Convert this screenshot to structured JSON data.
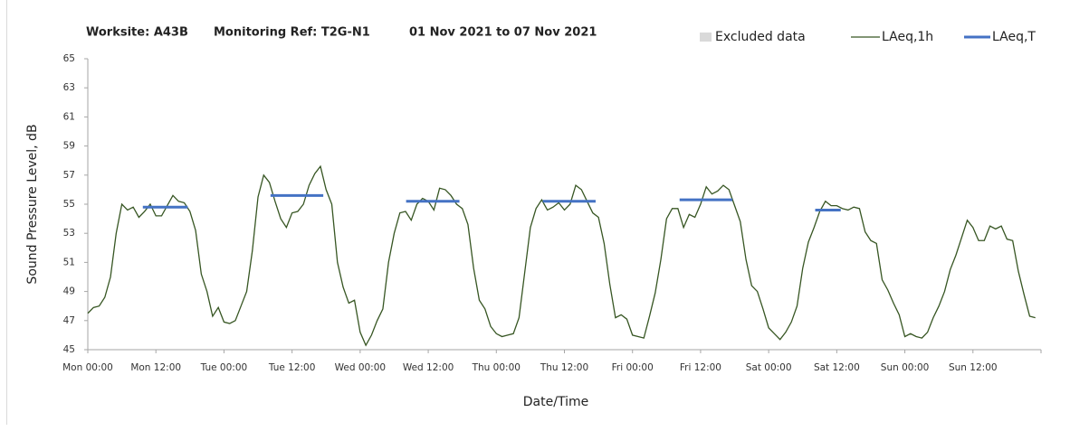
{
  "chart_data": {
    "type": "line",
    "title": [
      "Worksite: A43B",
      "Monitoring Ref: T2G-N1",
      "01 Nov 2021 to 07 Nov 2021"
    ],
    "xlabel": "Date/Time",
    "ylabel": "Sound Pressure Level, dB",
    "xlim": [
      0,
      168
    ],
    "ylim": [
      45,
      65
    ],
    "yticks": [
      45,
      47,
      49,
      51,
      53,
      55,
      57,
      59,
      61,
      63,
      65
    ],
    "xticks": [
      {
        "value": 0,
        "label": "Mon 00:00"
      },
      {
        "value": 12,
        "label": "Mon 12:00"
      },
      {
        "value": 24,
        "label": "Tue 00:00"
      },
      {
        "value": 36,
        "label": "Tue 12:00"
      },
      {
        "value": 48,
        "label": "Wed 00:00"
      },
      {
        "value": 60,
        "label": "Wed 12:00"
      },
      {
        "value": 72,
        "label": "Thu 00:00"
      },
      {
        "value": 84,
        "label": "Thu 12:00"
      },
      {
        "value": 96,
        "label": "Fri 00:00"
      },
      {
        "value": 108,
        "label": "Fri 12:00"
      },
      {
        "value": 120,
        "label": "Sat 00:00"
      },
      {
        "value": 132,
        "label": "Sat 12:00"
      },
      {
        "value": 144,
        "label": "Sun 00:00"
      },
      {
        "value": 156,
        "label": "Sun 12:00"
      }
    ],
    "excluded": {
      "name": "Excluded data",
      "color": "#d9d9d9"
    },
    "series": [
      {
        "name": "LAeq,1h",
        "color": "#375623",
        "x": [
          0,
          1,
          2,
          3,
          4,
          5,
          6,
          7,
          8,
          9,
          10,
          11,
          12,
          13,
          14,
          15,
          16,
          17,
          18,
          19,
          20,
          21,
          22,
          23,
          24,
          25,
          26,
          27,
          28,
          29,
          30,
          31,
          32,
          33,
          34,
          35,
          36,
          37,
          38,
          39,
          40,
          41,
          42,
          43,
          44,
          45,
          46,
          47,
          48,
          49,
          50,
          51,
          52,
          53,
          54,
          55,
          56,
          57,
          58,
          59,
          60,
          61,
          62,
          63,
          64,
          65,
          66,
          67,
          68,
          69,
          70,
          71,
          72,
          73,
          74,
          75,
          76,
          77,
          78,
          79,
          80,
          81,
          82,
          83,
          84,
          85,
          86,
          87,
          88,
          89,
          90,
          91,
          92,
          93,
          94,
          95,
          96,
          97,
          98,
          99,
          100,
          101,
          102,
          103,
          104,
          105,
          106,
          107,
          108,
          109,
          110,
          111,
          112,
          113,
          114,
          115,
          116,
          117,
          118,
          119,
          120,
          121,
          122,
          123,
          124,
          125,
          126,
          127,
          128,
          129,
          130,
          131,
          132,
          133,
          134,
          135,
          136,
          137,
          138,
          139,
          140,
          141,
          142,
          143,
          144,
          145,
          146,
          147,
          148,
          149,
          150,
          151,
          152,
          153,
          154,
          155,
          156,
          157,
          158,
          159,
          160,
          161,
          162,
          163,
          164,
          165,
          166,
          167
        ],
        "values": [
          47.5,
          47.9,
          48.0,
          48.6,
          50.0,
          53.0,
          55.0,
          54.6,
          54.8,
          54.1,
          54.5,
          55.0,
          54.2,
          54.2,
          54.9,
          55.6,
          55.2,
          55.1,
          54.5,
          53.2,
          50.2,
          49.0,
          47.3,
          47.9,
          46.9,
          46.8,
          47.0,
          48.0,
          49.0,
          51.8,
          55.5,
          57.0,
          56.5,
          55.2,
          54.0,
          53.4,
          54.4,
          54.5,
          55.0,
          56.3,
          57.1,
          57.6,
          56.0,
          55.0,
          51.0,
          49.3,
          48.2,
          48.4,
          46.2,
          45.3,
          46.0,
          47.0,
          47.8,
          51.0,
          53.0,
          54.4,
          54.5,
          53.9,
          55.0,
          55.4,
          55.2,
          54.6,
          56.1,
          56.0,
          55.6,
          55.0,
          54.7,
          53.6,
          50.6,
          48.4,
          47.8,
          46.6,
          46.1,
          45.9,
          46.0,
          46.1,
          47.2,
          50.3,
          53.4,
          54.7,
          55.3,
          54.6,
          54.8,
          55.1,
          54.6,
          55.0,
          56.3,
          56.0,
          55.2,
          54.4,
          54.1,
          52.3,
          49.5,
          47.2,
          47.4,
          47.1,
          46.0,
          45.9,
          45.8,
          47.3,
          48.9,
          51.2,
          54.0,
          54.7,
          54.7,
          53.4,
          54.3,
          54.1,
          55.0,
          56.2,
          55.7,
          55.9,
          56.3,
          56.0,
          54.9,
          53.8,
          51.2,
          49.4,
          49.0,
          47.8,
          46.5,
          46.1,
          45.7,
          46.2,
          46.9,
          48.0,
          50.6,
          52.4,
          53.4,
          54.5,
          55.2,
          54.9,
          54.9,
          54.7,
          54.6,
          54.8,
          54.7,
          53.1,
          52.5,
          52.3,
          49.8,
          49.1,
          48.2,
          47.4,
          45.9,
          46.1,
          45.9,
          45.8,
          46.2,
          47.2,
          48.0,
          49.0,
          50.5,
          51.5,
          52.7,
          53.9,
          53.4,
          52.5,
          52.5,
          53.5,
          53.3,
          53.5,
          52.6,
          52.5,
          50.4,
          48.8,
          47.3,
          47.2
        ]
      },
      {
        "name": "LAeq,T",
        "color": "#4472c4",
        "x": [
          [
            9.7,
            17.6
          ],
          [
            32.2,
            41.5
          ],
          [
            56.1,
            65.5
          ],
          [
            80.2,
            89.5
          ],
          [
            104.3,
            113.6
          ],
          [
            128.2,
            132.7
          ]
        ],
        "values": [
          54.8,
          55.6,
          55.2,
          55.2,
          55.3,
          54.6
        ]
      }
    ]
  }
}
